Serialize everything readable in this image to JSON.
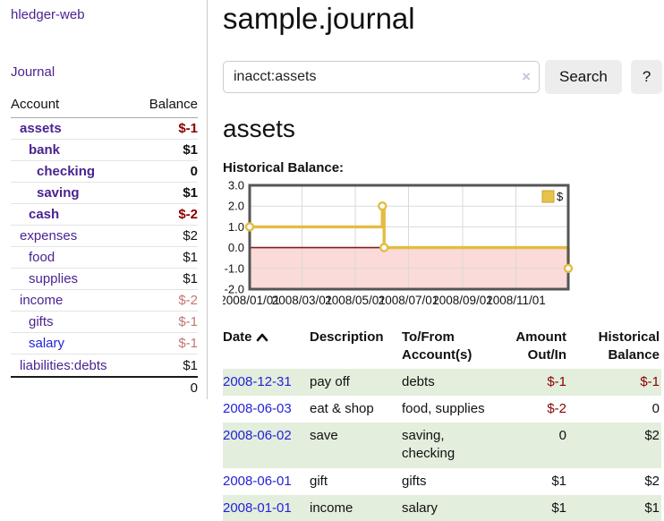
{
  "app": {
    "title": "hledger-web",
    "nav_journal": "Journal"
  },
  "sidebar": {
    "header": {
      "account": "Account",
      "balance": "Balance"
    },
    "accounts": [
      {
        "name": "assets",
        "balance": "$-1"
      },
      {
        "name": "bank",
        "balance": "$1"
      },
      {
        "name": "checking",
        "balance": "0"
      },
      {
        "name": "saving",
        "balance": "$1"
      },
      {
        "name": "cash",
        "balance": "$-2"
      },
      {
        "name": "expenses",
        "balance": "$2"
      },
      {
        "name": "food",
        "balance": "$1"
      },
      {
        "name": "supplies",
        "balance": "$1"
      },
      {
        "name": "income",
        "balance": "$-2"
      },
      {
        "name": "gifts",
        "balance": "$-1"
      },
      {
        "name": "salary",
        "balance": "$-1"
      },
      {
        "name": "liabilities:debts",
        "balance": "$1"
      }
    ],
    "total": "0"
  },
  "main": {
    "title": "sample.journal",
    "search": {
      "value": "inacct:assets",
      "clear_icon": "×",
      "button": "Search",
      "help": "?"
    },
    "section_title": "assets",
    "chart_label": "Historical Balance:"
  },
  "chart_data": {
    "type": "line",
    "title": "Historical Balance",
    "step": true,
    "series": [
      {
        "name": "$",
        "points": [
          [
            "2008/01/01",
            1
          ],
          [
            "2008/06/01",
            2
          ],
          [
            "2008/06/03",
            0
          ],
          [
            "2008/12/31",
            -1
          ]
        ]
      }
    ],
    "x_ticks": [
      "2008/01/01",
      "2008/03/01",
      "2008/05/01",
      "2008/07/01",
      "2008/09/01",
      "2008/11/01"
    ],
    "y_ticks": [
      3.0,
      2.0,
      1.0,
      0.0,
      -1.0,
      -2.0
    ],
    "ylim": [
      -2,
      3
    ],
    "x_domain": [
      "2008/01/01",
      "2008/12/31"
    ],
    "legend": {
      "label": "$",
      "position": "top-right"
    },
    "colors": {
      "line": "#e3bc42",
      "marker_fill": "#ffffff",
      "negative_region": "#fbdada",
      "zero_line": "#8b1a1a",
      "grid": "#d9d9d9",
      "frame": "#555555",
      "legend_fill": "#e7c34c",
      "legend_stroke": "#c9a02c"
    }
  },
  "table": {
    "headers": {
      "date": "Date",
      "description": "Description",
      "tofrom": "To/From Account(s)",
      "amount": "Amount Out/In",
      "balance": "Historical Balance"
    },
    "rows": [
      {
        "date": "2008-12-31",
        "description": "pay off",
        "accounts": "debts",
        "amount": "$-1",
        "balance": "$-1"
      },
      {
        "date": "2008-06-03",
        "description": "eat & shop",
        "accounts": "food, supplies",
        "amount": "$-2",
        "balance": "0"
      },
      {
        "date": "2008-06-02",
        "description": "save",
        "accounts": "saving, checking",
        "amount": "0",
        "balance": "$2"
      },
      {
        "date": "2008-06-01",
        "description": "gift",
        "accounts": "gifts",
        "amount": "$1",
        "balance": "$2"
      },
      {
        "date": "2008-01-01",
        "description": "income",
        "accounts": "salary",
        "amount": "$1",
        "balance": "$1"
      }
    ]
  }
}
